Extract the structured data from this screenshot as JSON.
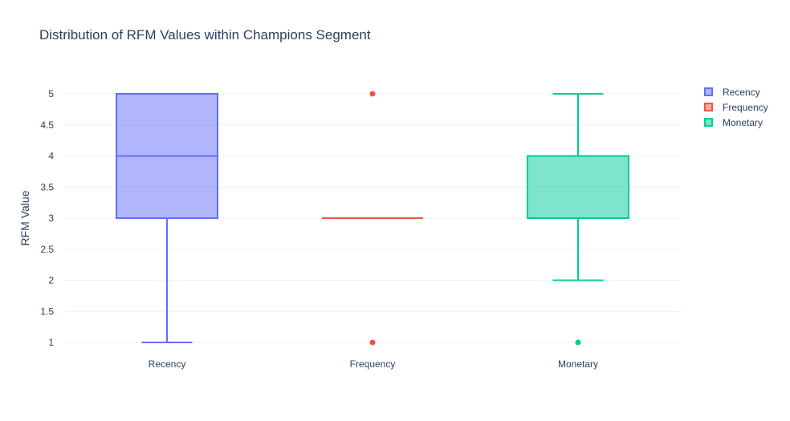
{
  "chart_data": {
    "type": "box",
    "title": "Distribution of RFM Values within Champions Segment",
    "xlabel": "",
    "ylabel": "RFM Value",
    "ylim": [
      1,
      5
    ],
    "yticks": [
      "1",
      "1.5",
      "2",
      "2.5",
      "3",
      "3.5",
      "4",
      "4.5",
      "5"
    ],
    "grid": true,
    "legend_position": "top-right",
    "categories": [
      "Recency",
      "Frequency",
      "Monetary"
    ],
    "series": [
      {
        "name": "Recency",
        "color": "#636efa",
        "min": 1,
        "q1": 3,
        "median": 4,
        "q3": 5,
        "max": 5,
        "outliers": []
      },
      {
        "name": "Frequency",
        "color": "#ef553b",
        "min": 3,
        "q1": 3,
        "median": 3,
        "q3": 3,
        "max": 3,
        "outliers": [
          1,
          5
        ]
      },
      {
        "name": "Monetary",
        "color": "#00cc96",
        "min": 2,
        "q1": 3,
        "median": 3,
        "q3": 4,
        "max": 5,
        "outliers": [
          1
        ]
      }
    ]
  }
}
